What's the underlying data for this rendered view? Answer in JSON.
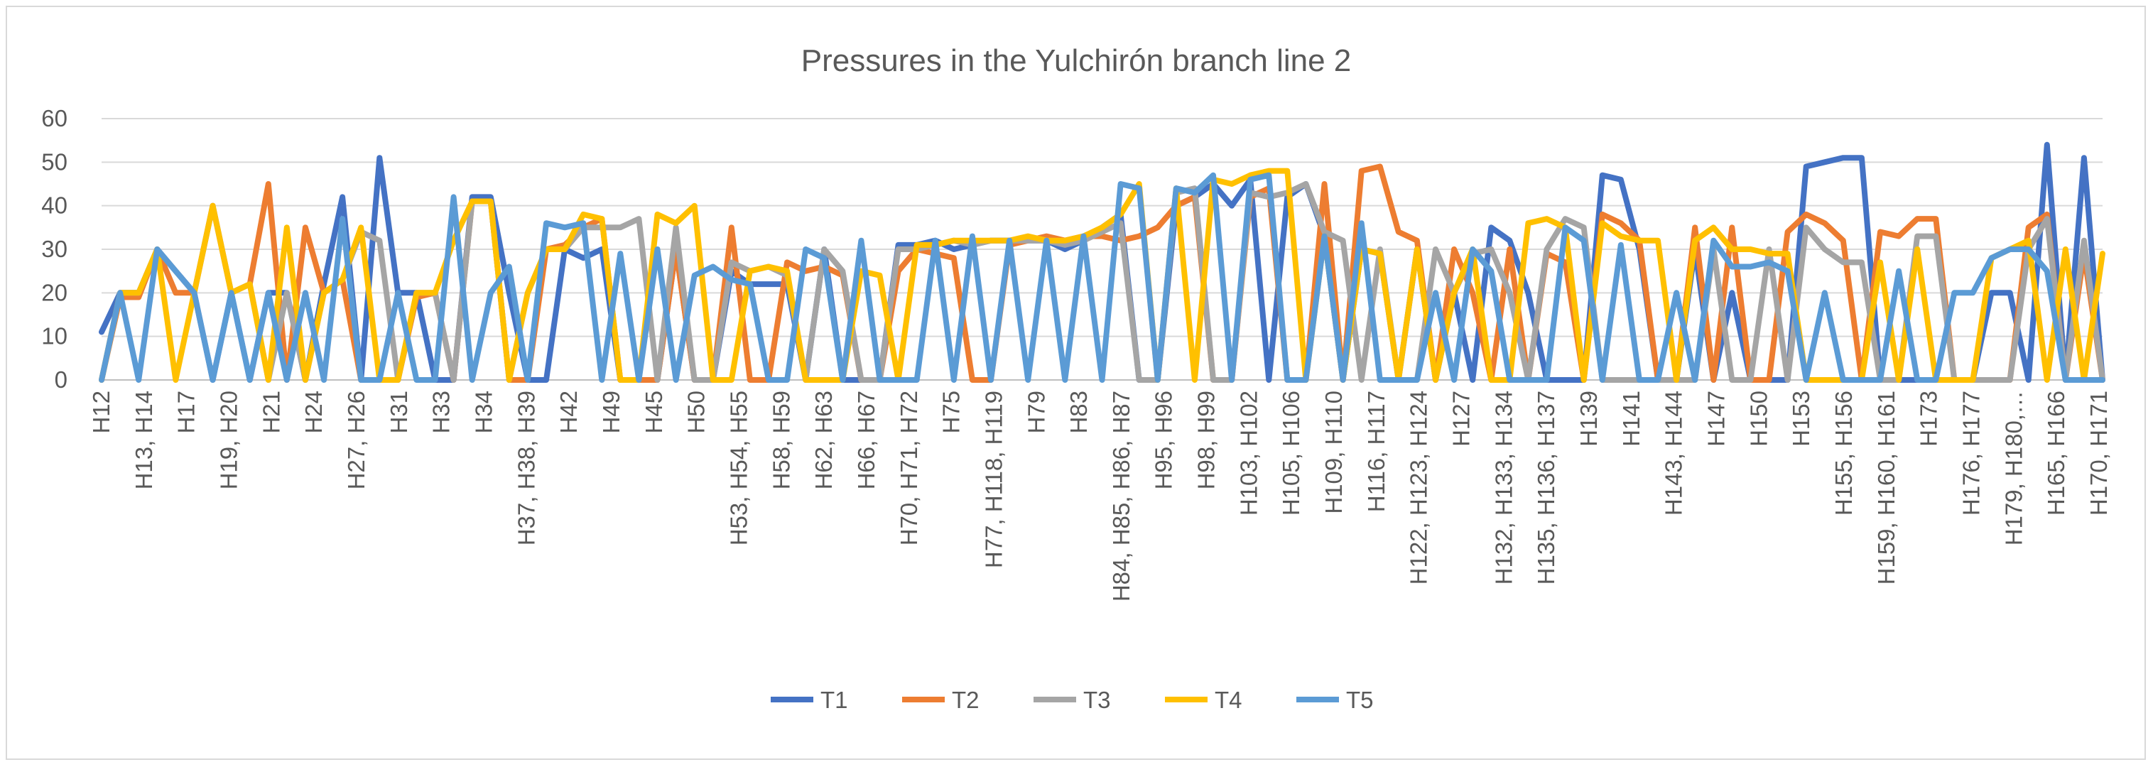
{
  "chart_data": {
    "type": "line",
    "title": "Pressures in the Yulchirón branch line 2",
    "xlabel": "",
    "ylabel": "",
    "ylim": [
      0,
      60
    ],
    "yticks": [
      0,
      10,
      20,
      30,
      40,
      50,
      60
    ],
    "grid": true,
    "legend_position": "bottom",
    "x_tick_labels": [
      "H12",
      "H13, H14",
      "H17",
      "H19, H20",
      "H21",
      "H24",
      "H27, H26",
      "H31",
      "H33",
      "H34",
      "H37, H38, H39",
      "H42",
      "H49",
      "H45",
      "H50",
      "H53, H54, H55",
      "H58, H59",
      "H62, H63",
      "H66, H67",
      "H70, H71, H72",
      "H75",
      "H77, H118, H119",
      "H79",
      "H83",
      "H84, H85, H86, H87",
      "H95, H96",
      "H98, H99",
      "H103, H102",
      "H105, H106",
      "H109, H110",
      "H116, H117",
      "H122, H123, H124",
      "H127",
      "H132, H133, H134",
      "H135, H136, H137",
      "H139",
      "H141",
      "H143, H144",
      "H147",
      "H150",
      "H153",
      "H155, H156",
      "H159, H160, H161",
      "H173",
      "H176, H177",
      "H179, H180,…",
      "H165, H166",
      "H170, H171"
    ],
    "series": [
      {
        "name": "T1",
        "color": "#4472c4",
        "values": [
          11,
          20,
          20,
          30,
          25,
          20,
          0,
          20,
          0,
          20,
          20,
          0,
          22,
          42,
          0,
          51,
          20,
          20,
          0,
          0,
          42,
          42,
          20,
          0,
          0,
          30,
          28,
          30,
          0,
          0,
          0,
          30,
          0,
          0,
          25,
          22,
          22,
          22,
          0,
          30,
          0,
          0,
          0,
          31,
          31,
          32,
          30,
          31,
          32,
          32,
          32,
          32,
          30,
          32,
          35,
          38,
          0,
          0,
          40,
          42,
          45,
          40,
          46,
          0,
          42,
          45,
          33,
          0,
          30,
          29,
          0,
          30,
          0,
          20,
          0,
          35,
          32,
          20,
          0,
          0,
          0,
          47,
          46,
          30,
          0,
          0,
          30,
          0,
          20,
          0,
          0,
          0,
          49,
          50,
          51,
          51,
          0,
          0,
          0,
          0,
          0,
          0,
          20,
          20,
          0,
          54,
          0,
          51,
          0
        ]
      },
      {
        "name": "T2",
        "color": "#ed7d31",
        "values": [
          0,
          19,
          19,
          30,
          20,
          20,
          40,
          20,
          22,
          45,
          0,
          35,
          20,
          23,
          0,
          0,
          0,
          19,
          20,
          0,
          41,
          41,
          0,
          0,
          30,
          31,
          35,
          37,
          0,
          0,
          0,
          30,
          0,
          0,
          35,
          0,
          0,
          27,
          25,
          26,
          24,
          0,
          0,
          25,
          30,
          29,
          28,
          0,
          0,
          31,
          32,
          33,
          32,
          33,
          33,
          32,
          33,
          35,
          40,
          42,
          0,
          0,
          42,
          44,
          0,
          0,
          45,
          0,
          48,
          49,
          34,
          32,
          0,
          30,
          20,
          0,
          30,
          0,
          29,
          27,
          0,
          38,
          36,
          32,
          0,
          0,
          35,
          0,
          35,
          0,
          0,
          34,
          38,
          36,
          32,
          0,
          34,
          33,
          37,
          37,
          0,
          0,
          0,
          0,
          35,
          38,
          0,
          29,
          0
        ]
      },
      {
        "name": "T3",
        "color": "#a5a5a5",
        "values": [
          0,
          20,
          20,
          30,
          25,
          20,
          40,
          20,
          22,
          0,
          20,
          0,
          20,
          23,
          34,
          32,
          0,
          20,
          20,
          0,
          41,
          41,
          0,
          20,
          30,
          30,
          35,
          35,
          35,
          37,
          0,
          35,
          0,
          0,
          27,
          25,
          26,
          24,
          0,
          30,
          25,
          0,
          0,
          30,
          30,
          31,
          32,
          31,
          32,
          32,
          32,
          32,
          31,
          32,
          34,
          36,
          0,
          0,
          43,
          44,
          0,
          0,
          43,
          42,
          43,
          45,
          34,
          32,
          0,
          30,
          0,
          0,
          30,
          20,
          29,
          30,
          20,
          0,
          30,
          37,
          35,
          0,
          0,
          0,
          0,
          0,
          0,
          30,
          0,
          0,
          30,
          0,
          35,
          30,
          27,
          27,
          0,
          0,
          33,
          33,
          0,
          0,
          0,
          0,
          30,
          37,
          0,
          32,
          0
        ]
      },
      {
        "name": "T4",
        "color": "#ffc000",
        "values": [
          0,
          20,
          20,
          30,
          0,
          20,
          40,
          20,
          22,
          0,
          35,
          0,
          20,
          23,
          35,
          0,
          0,
          20,
          20,
          32,
          41,
          41,
          0,
          20,
          30,
          30,
          38,
          37,
          0,
          0,
          38,
          36,
          40,
          0,
          0,
          25,
          26,
          25,
          0,
          0,
          0,
          25,
          24,
          0,
          31,
          31,
          32,
          32,
          32,
          32,
          33,
          32,
          32,
          33,
          35,
          38,
          45,
          0,
          44,
          0,
          46,
          45,
          47,
          48,
          48,
          0,
          33,
          0,
          30,
          29,
          0,
          30,
          0,
          20,
          30,
          0,
          0,
          36,
          37,
          35,
          0,
          36,
          33,
          32,
          32,
          0,
          32,
          35,
          30,
          30,
          29,
          29,
          0,
          0,
          0,
          0,
          27,
          0,
          30,
          0,
          0,
          0,
          28,
          30,
          32,
          0,
          30,
          0,
          29
        ]
      },
      {
        "name": "T5",
        "color": "#5b9bd5",
        "values": [
          0,
          20,
          0,
          30,
          25,
          20,
          0,
          20,
          0,
          20,
          0,
          20,
          0,
          37,
          0,
          0,
          20,
          0,
          0,
          42,
          0,
          20,
          26,
          0,
          36,
          35,
          36,
          0,
          29,
          0,
          30,
          0,
          24,
          26,
          23,
          22,
          0,
          0,
          30,
          28,
          0,
          32,
          0,
          0,
          0,
          32,
          0,
          33,
          0,
          32,
          0,
          32,
          0,
          33,
          0,
          45,
          44,
          0,
          44,
          43,
          47,
          0,
          46,
          47,
          0,
          0,
          33,
          0,
          36,
          0,
          0,
          0,
          20,
          0,
          30,
          25,
          0,
          0,
          0,
          35,
          32,
          0,
          31,
          0,
          0,
          20,
          0,
          32,
          26,
          26,
          27,
          25,
          0,
          20,
          0,
          0,
          0,
          25,
          0,
          0,
          20,
          20,
          28,
          30,
          30,
          25,
          0,
          0,
          0
        ]
      }
    ]
  }
}
